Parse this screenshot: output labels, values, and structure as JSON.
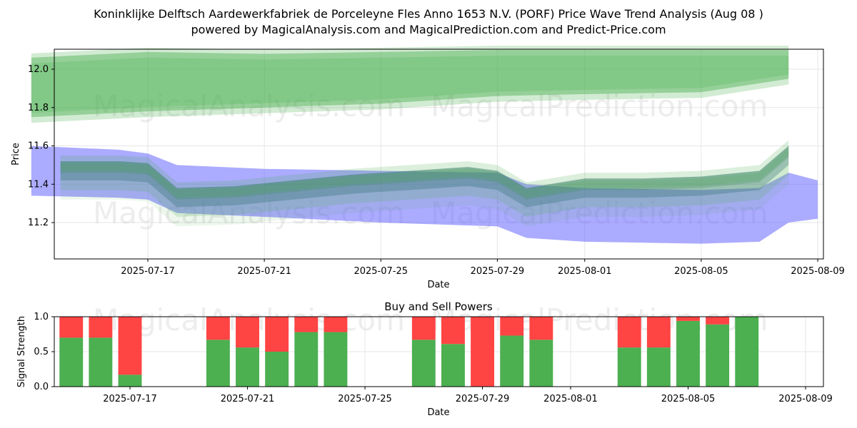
{
  "title_line1": "Koninklijke Delftsch Aardewerkfabriek de Porceleyne Fles Anno 1653 N.V. (PORF) Price Wave Trend Analysis (Aug 08 )",
  "title_line2": "powered by MagicalAnalysis.com and MagicalPrediction.com and Predict-Price.com",
  "watermarks": [
    "MagicalAnalysis.com",
    "MagicalPrediction.com"
  ],
  "colors": {
    "green_band": "#4caf50",
    "blue_band": "#6666ff",
    "buy": "#4caf50",
    "sell": "#ff4444"
  },
  "chart_data": [
    {
      "type": "area",
      "xlabel": "Date",
      "ylabel": "Price",
      "ylim": [
        11.0,
        12.1
      ],
      "yticks": [
        "11.2",
        "11.4",
        "11.6",
        "11.8",
        "12.0"
      ],
      "xticks": [
        "2025-07-17",
        "2025-07-21",
        "2025-07-25",
        "2025-07-29",
        "2025-08-01",
        "2025-08-05",
        "2025-08-09"
      ],
      "grid": true,
      "series": [
        {
          "kind": "upper-band",
          "x": [
            "2025-07-13",
            "2025-07-17",
            "2025-07-21",
            "2025-07-25",
            "2025-07-29",
            "2025-08-01",
            "2025-08-05",
            "2025-08-08"
          ],
          "upper": [
            12.06,
            12.09,
            12.08,
            12.09,
            12.1,
            12.1,
            12.1,
            12.1
          ],
          "lower": [
            11.75,
            11.78,
            11.8,
            11.82,
            11.86,
            11.87,
            11.88,
            11.95
          ]
        },
        {
          "kind": "lower-band",
          "x": [
            "2025-07-13",
            "2025-07-16",
            "2025-07-17",
            "2025-07-18",
            "2025-07-21",
            "2025-07-25",
            "2025-07-29",
            "2025-07-30",
            "2025-08-01",
            "2025-08-05",
            "2025-08-07",
            "2025-08-08",
            "2025-08-09"
          ],
          "upper": [
            11.6,
            11.58,
            11.56,
            11.5,
            11.48,
            11.47,
            11.46,
            11.4,
            11.38,
            11.37,
            11.38,
            11.46,
            11.42
          ],
          "lower": [
            11.34,
            11.33,
            11.32,
            11.25,
            11.23,
            11.2,
            11.18,
            11.12,
            11.1,
            11.09,
            11.1,
            11.2,
            11.22
          ]
        },
        {
          "kind": "wave-center",
          "x": [
            "2025-07-14",
            "2025-07-16",
            "2025-07-17",
            "2025-07-18",
            "2025-07-20",
            "2025-07-22",
            "2025-07-24",
            "2025-07-26",
            "2025-07-28",
            "2025-07-29",
            "2025-07-30",
            "2025-08-01",
            "2025-08-03",
            "2025-08-05",
            "2025-08-07",
            "2025-08-08"
          ],
          "y": [
            11.47,
            11.47,
            11.46,
            11.33,
            11.34,
            11.37,
            11.4,
            11.42,
            11.44,
            11.42,
            11.33,
            11.38,
            11.38,
            11.39,
            11.42,
            11.55
          ]
        }
      ]
    },
    {
      "type": "bar",
      "title": "Buy and Sell Powers",
      "xlabel": "Date",
      "ylabel": "Signal Strength",
      "ylim": [
        0.0,
        1.0
      ],
      "yticks": [
        "0.0",
        "0.5",
        "1.0"
      ],
      "xticks": [
        "2025-07-17",
        "2025-07-21",
        "2025-07-25",
        "2025-07-29",
        "2025-08-01",
        "2025-08-05",
        "2025-08-09"
      ],
      "categories": [
        "2025-07-15",
        "2025-07-16",
        "2025-07-17",
        "2025-07-20",
        "2025-07-21",
        "2025-07-22",
        "2025-07-23",
        "2025-07-24",
        "2025-07-27",
        "2025-07-28",
        "2025-07-29",
        "2025-07-30",
        "2025-07-31",
        "2025-08-03",
        "2025-08-04",
        "2025-08-05",
        "2025-08-06",
        "2025-08-07"
      ],
      "series": [
        {
          "name": "buy",
          "values": [
            0.7,
            0.7,
            0.17,
            0.67,
            0.56,
            0.5,
            0.78,
            0.78,
            0.67,
            0.61,
            0.0,
            0.73,
            0.67,
            0.56,
            0.56,
            0.94,
            0.89,
            1.0
          ]
        },
        {
          "name": "sell",
          "values": [
            0.3,
            0.3,
            0.83,
            0.33,
            0.44,
            0.5,
            0.22,
            0.22,
            0.33,
            0.39,
            1.0,
            0.27,
            0.33,
            0.44,
            0.44,
            0.06,
            0.11,
            0.0
          ]
        }
      ]
    }
  ]
}
